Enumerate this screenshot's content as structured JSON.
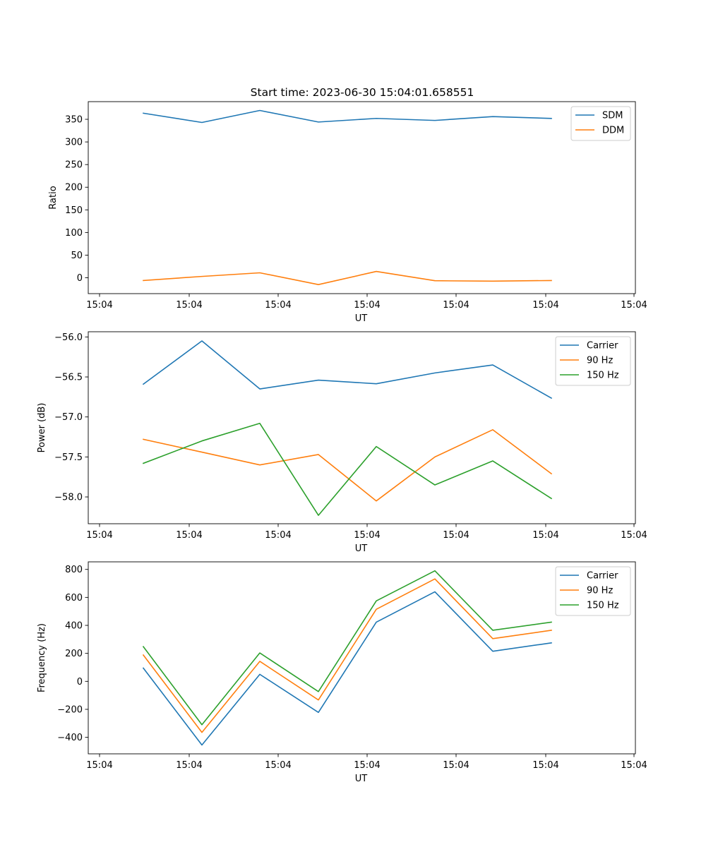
{
  "figure": {
    "title": "Start time: 2023-06-30 15:04:01.658551"
  },
  "chart_data": [
    {
      "type": "line",
      "title": "Start time: 2023-06-30 15:04:01.658551",
      "xlabel": "UT",
      "ylabel": "Ratio",
      "x_tick_labels": [
        "15:04",
        "15:04",
        "15:04",
        "15:04",
        "15:04",
        "15:04",
        "15:04"
      ],
      "y_ticks": [
        0,
        50,
        100,
        150,
        200,
        250,
        300,
        350
      ],
      "ylim": [
        -35,
        389
      ],
      "x_points": 8,
      "legend_position": "upper right",
      "series": [
        {
          "name": "SDM",
          "color": "#1f77b4",
          "values": [
            363.5,
            343,
            369.5,
            344,
            352,
            347.5,
            356,
            352
          ]
        },
        {
          "name": "DDM",
          "color": "#ff7f0e",
          "values": [
            -6,
            3,
            11,
            -15,
            14,
            -6.5,
            -7.5,
            -6
          ]
        }
      ]
    },
    {
      "type": "line",
      "title": "",
      "xlabel": "UT",
      "ylabel": "Power (dB)",
      "x_tick_labels": [
        "15:04",
        "15:04",
        "15:04",
        "15:04",
        "15:04",
        "15:04",
        "15:04"
      ],
      "y_ticks": [
        -58.0,
        -57.5,
        -57.0,
        -56.5,
        -56.0
      ],
      "y_tick_labels": [
        "−58.0",
        "−57.5",
        "−57.0",
        "−56.5",
        "−56.0"
      ],
      "ylim": [
        -58.335,
        -55.935
      ],
      "x_points": 8,
      "legend_position": "upper right",
      "series": [
        {
          "name": "Carrier",
          "color": "#1f77b4",
          "values": [
            -56.59,
            -56.05,
            -56.65,
            -56.54,
            -56.585,
            -56.45,
            -56.35,
            -56.765
          ]
        },
        {
          "name": "90 Hz",
          "color": "#ff7f0e",
          "values": [
            -57.28,
            -57.44,
            -57.6,
            -57.47,
            -58.05,
            -57.5,
            -57.16,
            -57.71
          ]
        },
        {
          "name": "150 Hz",
          "color": "#2ca02c",
          "values": [
            -57.58,
            -57.3,
            -57.08,
            -58.23,
            -57.37,
            -57.85,
            -57.55,
            -58.02
          ]
        }
      ]
    },
    {
      "type": "line",
      "title": "",
      "xlabel": "UT",
      "ylabel": "Frequency (Hz)",
      "x_tick_labels": [
        "15:04",
        "15:04",
        "15:04",
        "15:04",
        "15:04",
        "15:04",
        "15:04"
      ],
      "y_ticks": [
        -400,
        -200,
        0,
        200,
        400,
        600,
        800
      ],
      "y_tick_labels": [
        "−400",
        "−200",
        "0",
        "200",
        "400",
        "600",
        "800"
      ],
      "ylim": [
        -518,
        854
      ],
      "x_points": 8,
      "legend_position": "upper right",
      "series": [
        {
          "name": "Carrier",
          "color": "#1f77b4",
          "values": [
            95,
            -455,
            50,
            -222,
            423,
            640,
            215,
            275
          ]
        },
        {
          "name": "90 Hz",
          "color": "#ff7f0e",
          "values": [
            188,
            -365,
            143,
            -133,
            515,
            732,
            305,
            365
          ]
        },
        {
          "name": "150 Hz",
          "color": "#2ca02c",
          "values": [
            248,
            -310,
            203,
            -73,
            575,
            790,
            365,
            423
          ]
        }
      ]
    }
  ]
}
